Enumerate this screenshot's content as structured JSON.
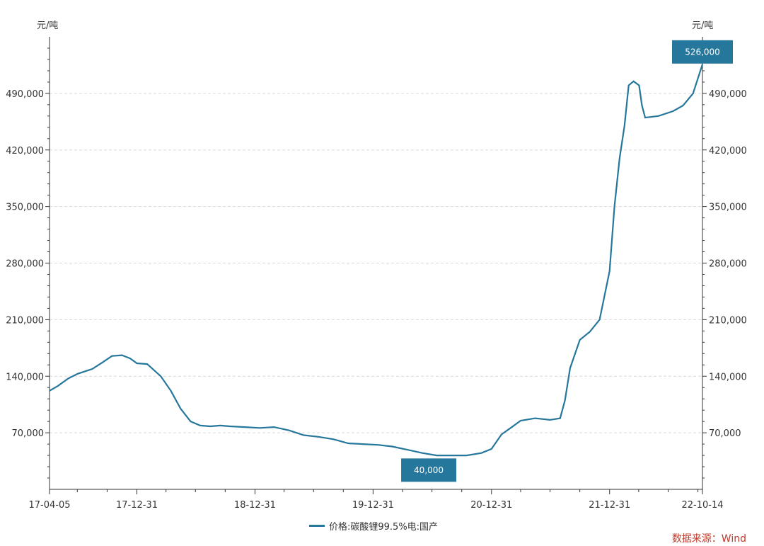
{
  "chart_data": {
    "type": "line",
    "unit_left": "元/吨",
    "unit_right": "元/吨",
    "x_tick_labels": [
      "17-04-05",
      "17-12-31",
      "18-12-31",
      "19-12-31",
      "20-12-31",
      "21-12-31",
      "22-10-14"
    ],
    "x_ticks": [
      "2017-04-05",
      "2017-12-31",
      "2018-12-31",
      "2019-12-31",
      "2020-12-31",
      "2021-12-31",
      "2022-10-14"
    ],
    "xlim": [
      "2017-04-05",
      "2022-10-14"
    ],
    "ylim": [
      0,
      560000
    ],
    "y_ticks": [
      70000,
      140000,
      210000,
      280000,
      350000,
      420000,
      490000
    ],
    "y_tick_labels": [
      "70,000",
      "140,000",
      "210,000",
      "280,000",
      "350,000",
      "420,000",
      "490,000"
    ],
    "grid": true,
    "color": "#26779c",
    "series": [
      {
        "name": "价格:碳酸锂99.5%电:国产",
        "x": [
          "2017-04-05",
          "2017-05-01",
          "2017-06-01",
          "2017-07-01",
          "2017-08-15",
          "2017-09-15",
          "2017-10-15",
          "2017-11-15",
          "2017-12-10",
          "2017-12-31",
          "2018-02-01",
          "2018-03-15",
          "2018-04-15",
          "2018-05-15",
          "2018-06-15",
          "2018-07-15",
          "2018-08-15",
          "2018-09-15",
          "2018-10-15",
          "2018-11-30",
          "2019-01-15",
          "2019-02-28",
          "2019-04-15",
          "2019-05-31",
          "2019-07-15",
          "2019-08-31",
          "2019-10-15",
          "2019-11-30",
          "2020-01-15",
          "2020-02-28",
          "2020-04-15",
          "2020-05-31",
          "2020-07-15",
          "2020-08-31",
          "2020-10-15",
          "2020-11-30",
          "2020-12-31",
          "2021-01-31",
          "2021-02-28",
          "2021-03-31",
          "2021-05-15",
          "2021-06-30",
          "2021-07-31",
          "2021-08-15",
          "2021-08-31",
          "2021-09-30",
          "2021-10-31",
          "2021-11-30",
          "2021-12-31",
          "2022-01-15",
          "2022-01-31",
          "2022-02-15",
          "2022-02-28",
          "2022-03-15",
          "2022-04-01",
          "2022-04-10",
          "2022-04-20",
          "2022-05-31",
          "2022-07-15",
          "2022-08-15",
          "2022-09-15",
          "2022-10-14"
        ],
        "values": [
          122000,
          128000,
          137000,
          143000,
          149000,
          157000,
          165000,
          166000,
          162000,
          156000,
          155000,
          140000,
          122000,
          100000,
          84000,
          79000,
          78000,
          79000,
          78000,
          77000,
          76000,
          77000,
          73000,
          67000,
          65000,
          62000,
          57000,
          56000,
          55000,
          53000,
          49000,
          45000,
          42000,
          42000,
          42000,
          45000,
          50000,
          68000,
          76000,
          85000,
          88000,
          86000,
          88000,
          110000,
          150000,
          185000,
          195000,
          210000,
          270000,
          350000,
          410000,
          450000,
          500000,
          505000,
          500000,
          475000,
          460000,
          462000,
          468000,
          475000,
          490000,
          526000
        ]
      }
    ],
    "callouts": [
      {
        "label": "526,000",
        "x": "2022-10-14",
        "y": 526000,
        "position": "above"
      },
      {
        "label": "40,000",
        "x": "2020-06-20",
        "y": 40000,
        "position": "below"
      }
    ]
  },
  "legend": {
    "label": "价格:碳酸锂99.5%电:国产"
  },
  "source": {
    "text": "数据来源：Wind"
  }
}
